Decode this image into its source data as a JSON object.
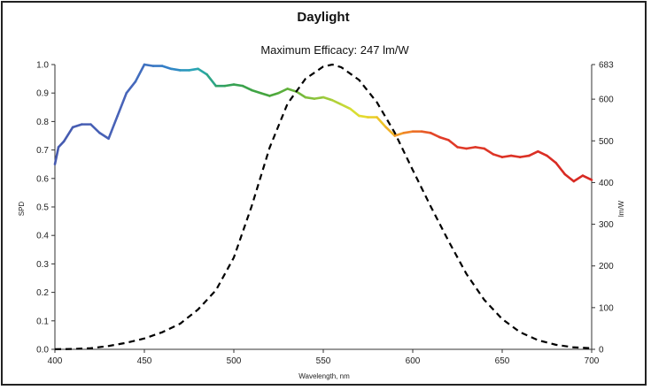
{
  "chart_data": {
    "type": "line",
    "title": "Daylight",
    "subtitle": "Maximum Efficacy: 247 lm/W",
    "xlabel": "Wavelength, nm",
    "ylabel": "SPD",
    "y2label": "lm/W",
    "xlim": [
      400,
      700
    ],
    "ylim": [
      0,
      1.0
    ],
    "y2lim": [
      0,
      683
    ],
    "x_ticks": [
      "400",
      "450",
      "500",
      "550",
      "600",
      "650",
      "700"
    ],
    "y_ticks": [
      "0.0",
      "0.1",
      "0.2",
      "0.3",
      "0.4",
      "0.5",
      "0.6",
      "0.7",
      "0.8",
      "0.9",
      "1.0"
    ],
    "y2_ticks": [
      "0",
      "100",
      "200",
      "300",
      "400",
      "500",
      "600",
      "683"
    ],
    "y2_tick_values": [
      0,
      100,
      200,
      300,
      400,
      500,
      600,
      683
    ],
    "grid": false,
    "series": [
      {
        "style": "solid, spectrum-colored",
        "x": [
          400,
          402,
          405,
          410,
          415,
          420,
          425,
          430,
          435,
          440,
          445,
          450,
          455,
          460,
          465,
          470,
          475,
          480,
          485,
          490,
          495,
          500,
          505,
          510,
          515,
          520,
          525,
          530,
          535,
          540,
          545,
          550,
          555,
          560,
          565,
          570,
          575,
          580,
          585,
          590,
          595,
          600,
          605,
          610,
          615,
          620,
          625,
          630,
          635,
          640,
          645,
          650,
          655,
          660,
          665,
          670,
          675,
          680,
          685,
          690,
          695,
          700
        ],
        "y": [
          0.65,
          0.71,
          0.73,
          0.78,
          0.79,
          0.79,
          0.76,
          0.74,
          0.82,
          0.9,
          0.94,
          1.0,
          0.995,
          0.995,
          0.985,
          0.98,
          0.98,
          0.985,
          0.965,
          0.925,
          0.925,
          0.93,
          0.925,
          0.91,
          0.9,
          0.89,
          0.9,
          0.915,
          0.905,
          0.885,
          0.88,
          0.885,
          0.875,
          0.86,
          0.845,
          0.82,
          0.815,
          0.815,
          0.78,
          0.75,
          0.76,
          0.765,
          0.765,
          0.76,
          0.745,
          0.735,
          0.71,
          0.705,
          0.71,
          0.705,
          0.685,
          0.675,
          0.68,
          0.675,
          0.68,
          0.695,
          0.68,
          0.655,
          0.615,
          0.59,
          0.61,
          0.595
        ]
      },
      {
        "style": "dashed, black",
        "axis": "right",
        "x": [
          400,
          410,
          420,
          430,
          440,
          450,
          460,
          470,
          480,
          490,
          500,
          510,
          520,
          530,
          540,
          550,
          555,
          560,
          570,
          580,
          590,
          600,
          610,
          620,
          630,
          640,
          650,
          660,
          670,
          680,
          690,
          700
        ],
        "y": [
          0.27,
          0.82,
          2.7,
          8.0,
          15.7,
          26.0,
          41.0,
          61.5,
          95.6,
          141.7,
          220.1,
          343.7,
          483.5,
          589.0,
          648.6,
          678.2,
          683,
          676.7,
          646.1,
          592.3,
          519.1,
          430.0,
          343.1,
          259.8,
          180.9,
          118.5,
          72.7,
          41.1,
          21.8,
          10.9,
          4.7,
          2.8
        ]
      }
    ]
  }
}
